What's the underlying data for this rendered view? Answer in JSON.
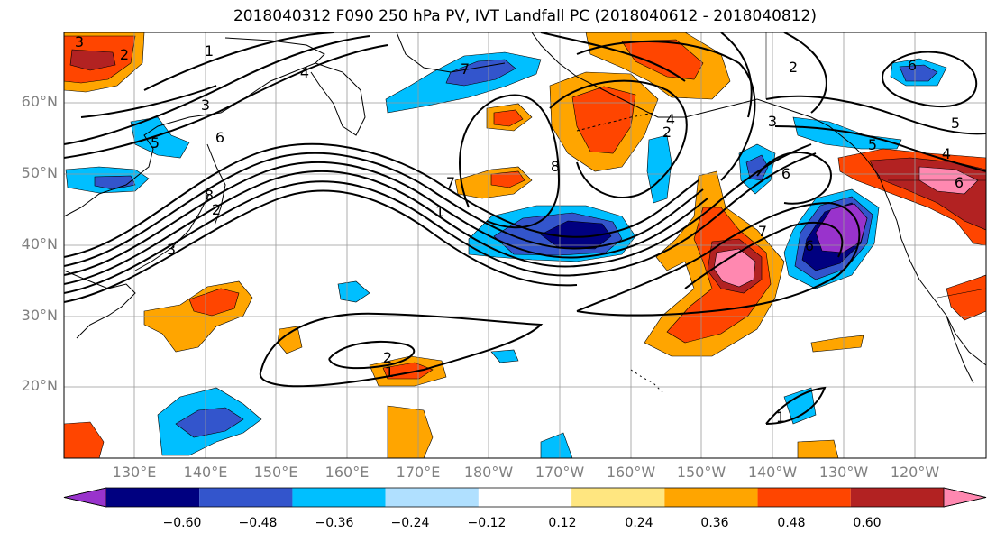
{
  "title": "2018040312 F090 250 hPa PV, IVT Landfall PC (2018040612 - 2018040812)",
  "latitude_labels": [
    "60°N",
    "50°N",
    "40°N",
    "30°N",
    "20°N"
  ],
  "longitude_labels": [
    "130°E",
    "140°E",
    "150°E",
    "160°E",
    "170°E",
    "180°W",
    "170°W",
    "160°W",
    "150°W",
    "140°W",
    "130°W",
    "120°W"
  ],
  "colorbar": {
    "tick_labels": [
      "−0.60",
      "−0.48",
      "−0.36",
      "−0.24",
      "−0.12",
      "0.12",
      "0.24",
      "0.36",
      "0.48",
      "0.60"
    ],
    "colors": [
      "#9933cc",
      "#000080",
      "#3355cc",
      "#00bfff",
      "#b0e0ff",
      "#ffffff",
      "#ffe680",
      "#ffa500",
      "#ff4500",
      "#b22222",
      "#ff88b0"
    ]
  },
  "contour_labels": [
    "3",
    "2",
    "1",
    "4",
    "3",
    "6",
    "5",
    "2",
    "7",
    "1",
    "8",
    "3",
    "8",
    "6",
    "7",
    "2",
    "3",
    "5",
    "6",
    "5",
    "4",
    "7",
    "6",
    "2",
    "1",
    "6",
    "4",
    "2",
    "1"
  ]
}
